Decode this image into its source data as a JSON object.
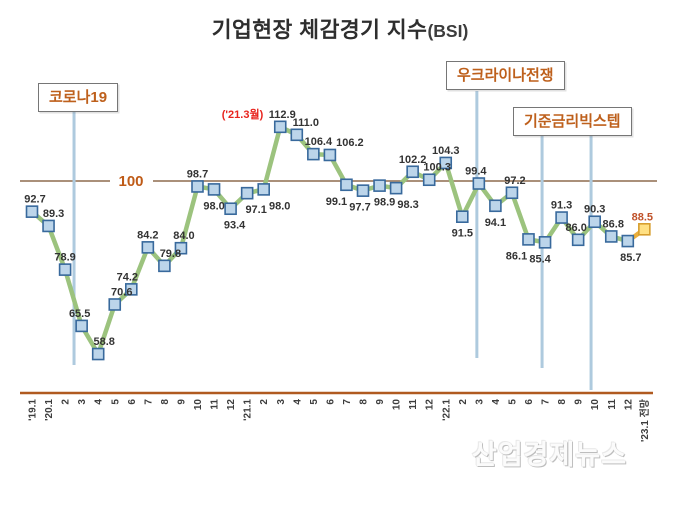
{
  "title": {
    "main": "기업현장 체감경기 지수",
    "suffix": "(BSI)"
  },
  "watermark": "산업경제뉴스",
  "annotation_boxes": [
    {
      "id": "corona",
      "label": "코로나19"
    },
    {
      "id": "ukraine",
      "label": "우크라이나전쟁"
    },
    {
      "id": "bigstep",
      "label": "기준금리빅스텝"
    }
  ],
  "colors": {
    "line_green": "#9cc37e",
    "marker_fill": "#bcd5ea",
    "marker_stroke": "#38699c",
    "forecast_line": "#ebaf3d",
    "forecast_marker_fill": "#ffe083",
    "forecast_marker_stroke": "#d79e2e",
    "forecast_label": "#c0522a",
    "ref_line": "#8e6c4e",
    "ref_label": "#bf5b17",
    "axis_line": "#b05a20",
    "event_line": "#aecade",
    "data_label": "#333333",
    "tick_label": "#3d3d3d",
    "peak_prefix_red": "#e8231d",
    "callout_text": "#be601c"
  },
  "chart_data": {
    "type": "line",
    "title": "기업현장 체감경기 지수(BSI)",
    "x_labels": [
      "'19.1",
      "'20.1",
      "2",
      "3",
      "4",
      "5",
      "6",
      "7",
      "8",
      "9",
      "10",
      "11",
      "12",
      "'21.1",
      "2",
      "3",
      "4",
      "5",
      "6",
      "7",
      "8",
      "9",
      "10",
      "11",
      "12",
      "'22.1",
      "2",
      "3",
      "4",
      "5",
      "6",
      "7",
      "8",
      "9",
      "10",
      "11",
      "12",
      "'23.1 전망"
    ],
    "series": [
      {
        "name": "BSI",
        "values": [
          92.7,
          89.3,
          78.9,
          65.5,
          58.8,
          70.6,
          74.2,
          84.2,
          79.8,
          84.0,
          98.7,
          98.0,
          93.4,
          97.1,
          98.0,
          112.9,
          111.0,
          106.4,
          106.2,
          99.1,
          97.7,
          98.9,
          98.3,
          102.2,
          100.3,
          104.3,
          91.5,
          99.4,
          94.1,
          97.2,
          86.1,
          85.4,
          91.3,
          86.0,
          90.3,
          86.8,
          85.7,
          88.5
        ]
      }
    ],
    "forecast_index": 37,
    "reference_line": {
      "value": 100,
      "label": "100"
    },
    "peak_annotation": {
      "text": "('21.3월)",
      "index": 15
    },
    "events": [
      {
        "label": "코로나19",
        "at_index": 2.54
      },
      {
        "label": "우크라이나전쟁",
        "at_index": 26.88
      },
      {
        "label": "기준금리빅스텝",
        "at_index": 30.82
      },
      {
        "label": "기준금리빅스텝",
        "at_index": 33.78
      }
    ],
    "label_side": [
      "a",
      "a",
      "a",
      "a",
      "a",
      "a",
      "a",
      "a",
      "a",
      "a",
      "a",
      "b",
      "b",
      "b",
      "b",
      "a",
      "a",
      "a",
      "a",
      "b",
      "b",
      "b",
      "b",
      "a",
      "a",
      "a",
      "b",
      "a",
      "b",
      "a",
      "b",
      "b",
      "a",
      "a",
      "a",
      "a",
      "b",
      "a"
    ],
    "label_dx": [
      3,
      5,
      0,
      -2,
      6,
      7,
      -4,
      0,
      6,
      3,
      0,
      0,
      4,
      9,
      16,
      2,
      9,
      5,
      20,
      -10,
      -3,
      5,
      12,
      0,
      8,
      0,
      0,
      -3,
      0,
      3,
      -12,
      -5,
      0,
      -2,
      0,
      2,
      3,
      -2
    ],
    "ylim": [
      55,
      118
    ],
    "grid": false,
    "legend": false
  }
}
